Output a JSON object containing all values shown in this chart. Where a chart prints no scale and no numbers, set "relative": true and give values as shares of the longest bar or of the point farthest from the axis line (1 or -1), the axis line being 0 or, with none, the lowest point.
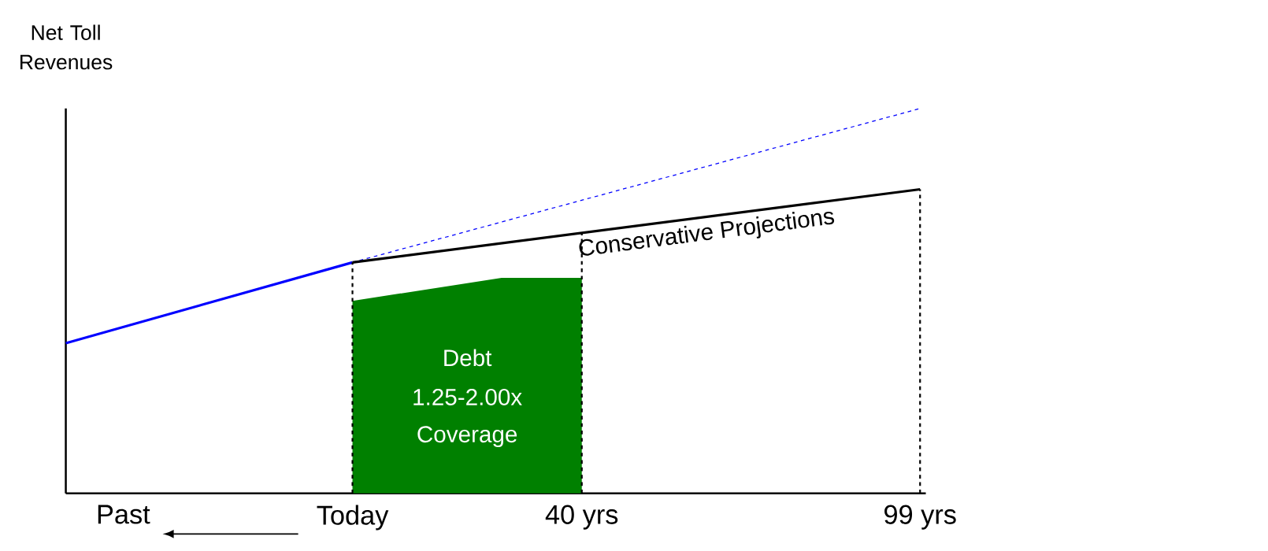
{
  "chart_data": {
    "type": "line",
    "relative": true,
    "ylabel": "Net Toll Revenues",
    "xlim": [
      -50,
      100
    ],
    "xticks": [
      {
        "value": -40,
        "label": "Past"
      },
      {
        "value": 0,
        "label": "Today"
      },
      {
        "value": 40,
        "label": "40 yrs"
      },
      {
        "value": 99,
        "label": "99 yrs"
      }
    ],
    "series": [
      {
        "type": "area",
        "color": "#008000",
        "x": [
          0,
          26,
          40
        ],
        "values": [
          0.5,
          0.56,
          0.56
        ]
      },
      {
        "color": "#0000ff",
        "x": [
          -50,
          0
        ],
        "values": [
          0.39,
          0.6
        ]
      },
      {
        "color": "#0000ff",
        "line_style": "dashed",
        "x": [
          0,
          99
        ],
        "values": [
          0.6,
          1.0
        ]
      },
      {
        "color": "#000000",
        "name": "Conservative Projections",
        "x": [
          0,
          99
        ],
        "values": [
          0.6,
          0.79
        ]
      }
    ],
    "ref_lines": [
      {
        "axis": "x",
        "value": 0,
        "color": "#000000",
        "line_style": "dashed"
      },
      {
        "axis": "x",
        "value": 40,
        "color": "#000000",
        "line_style": "dashed"
      },
      {
        "axis": "x",
        "value": 99,
        "color": "#000000",
        "line_style": "dashed"
      }
    ],
    "annotations": [
      "Debt",
      "1.25-2.00x",
      "Coverage"
    ]
  }
}
